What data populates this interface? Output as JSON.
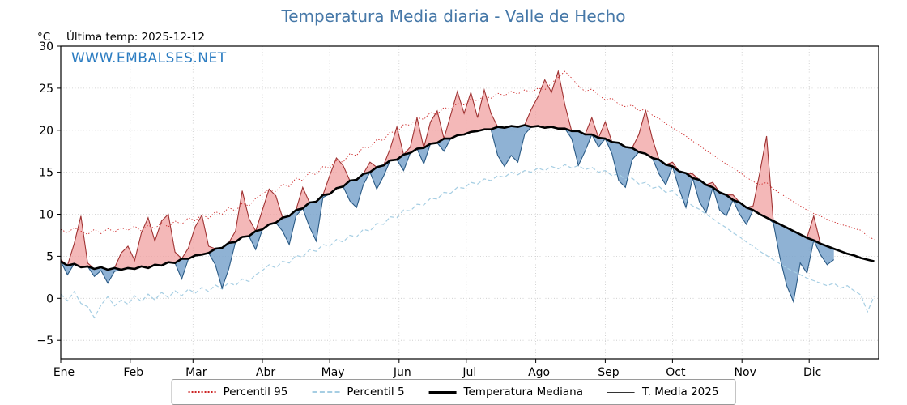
{
  "title": "Temperatura Media diaria - Valle de Hecho",
  "header": {
    "y_unit": "°C",
    "last_temp": "Última temp: 2025-12-12"
  },
  "watermark": "WWW.EMBALSES.NET",
  "legend": {
    "items": [
      {
        "label": "Percentil 95",
        "style": "dotted"
      },
      {
        "label": "Percentil 5",
        "style": "dashed"
      },
      {
        "label": "Temperatura Mediana",
        "style": "solid-thick"
      },
      {
        "label": "T. Media 2025",
        "style": "solid-thin"
      }
    ]
  },
  "colors": {
    "title": "#4678a8",
    "watermark": "#2b7cc1",
    "p95_line": "#cc2222",
    "p5_line": "#a6cee3",
    "median_line": "#000000",
    "t2025_line": "#333333",
    "above_fill": "#f0a0a0",
    "above_edge": "#a03333",
    "below_fill": "#7ba4cc",
    "below_edge": "#2a5a85",
    "grid": "#c8c8c8",
    "frame": "#000000"
  },
  "chart_data": {
    "type": "line",
    "title": "Temperatura Media diaria - Valle de Hecho",
    "xlabel": "",
    "ylabel": "°C",
    "ylim": [
      -7.2,
      30
    ],
    "grid": true,
    "legend_position": "bottom",
    "last_date": "2025-12-12",
    "y_ticks": [
      -5,
      0,
      5,
      10,
      15,
      20,
      25,
      30
    ],
    "x_months": [
      {
        "label": "Ene",
        "day": 0
      },
      {
        "label": "Feb",
        "day": 31
      },
      {
        "label": "Mar",
        "day": 59
      },
      {
        "label": "Abr",
        "day": 90
      },
      {
        "label": "May",
        "day": 120
      },
      {
        "label": "Jun",
        "day": 151
      },
      {
        "label": "Jul",
        "day": 181
      },
      {
        "label": "Ago",
        "day": 212
      },
      {
        "label": "Sep",
        "day": 243
      },
      {
        "label": "Oct",
        "day": 273
      },
      {
        "label": "Nov",
        "day": 304
      },
      {
        "label": "Dic",
        "day": 334
      }
    ],
    "step_days": 3,
    "series": [
      {
        "key": "p95",
        "name": "Percentil 95",
        "values": [
          8.2,
          7.8,
          8.4,
          8.0,
          7.6,
          8.2,
          7.7,
          8.3,
          7.9,
          8.4,
          8.1,
          8.6,
          8.0,
          8.7,
          8.3,
          9.0,
          8.5,
          9.2,
          8.8,
          9.6,
          9.2,
          10.0,
          9.5,
          10.3,
          10.0,
          10.8,
          10.4,
          11.3,
          11.0,
          11.9,
          12.4,
          13.0,
          12.7,
          13.6,
          13.3,
          14.3,
          14.0,
          15.0,
          14.7,
          15.7,
          15.5,
          16.4,
          16.2,
          17.2,
          17.0,
          18.0,
          17.9,
          18.9,
          18.8,
          19.8,
          19.7,
          20.7,
          20.6,
          21.5,
          21.3,
          22.1,
          21.9,
          22.7,
          22.5,
          23.2,
          23.0,
          23.7,
          23.5,
          24.1,
          23.8,
          24.4,
          24.1,
          24.6,
          24.3,
          24.8,
          24.5,
          25.0,
          24.8,
          25.6,
          26.3,
          27.0,
          26.2,
          25.3,
          24.6,
          24.9,
          24.2,
          23.6,
          23.8,
          23.1,
          22.8,
          23.0,
          22.3,
          22.5,
          21.8,
          21.4,
          20.8,
          20.3,
          19.8,
          19.3,
          18.7,
          18.2,
          17.6,
          17.1,
          16.5,
          16.0,
          15.5,
          15.0,
          14.4,
          13.9,
          13.5,
          13.8,
          13.0,
          12.5,
          12.0,
          11.5,
          11.0,
          10.5,
          10.1,
          9.8,
          9.4,
          9.1,
          8.8,
          8.6,
          8.3,
          8.1,
          7.4,
          7.0
        ]
      },
      {
        "key": "p5",
        "name": "Percentil 5",
        "values": [
          0.5,
          -0.3,
          0.8,
          -0.6,
          -1.0,
          -2.3,
          -0.8,
          0.2,
          -0.9,
          -0.2,
          -0.7,
          0.3,
          -0.4,
          0.5,
          -0.2,
          0.7,
          0.1,
          0.9,
          0.3,
          1.1,
          0.6,
          1.3,
          0.8,
          1.6,
          1.1,
          1.9,
          1.5,
          2.3,
          2.0,
          2.8,
          3.3,
          4.0,
          3.6,
          4.4,
          4.2,
          5.1,
          4.9,
          5.8,
          5.6,
          6.4,
          6.2,
          7.0,
          6.7,
          7.5,
          7.3,
          8.2,
          8.0,
          8.9,
          8.8,
          9.7,
          9.6,
          10.5,
          10.4,
          11.2,
          11.1,
          11.9,
          11.8,
          12.6,
          12.5,
          13.2,
          13.1,
          13.8,
          13.6,
          14.2,
          14.0,
          14.6,
          14.4,
          15.0,
          14.7,
          15.2,
          15.0,
          15.5,
          15.2,
          15.7,
          15.4,
          15.9,
          15.5,
          15.8,
          15.3,
          15.6,
          15.0,
          15.2,
          14.6,
          14.8,
          14.1,
          14.3,
          13.6,
          13.8,
          13.1,
          13.3,
          12.6,
          12.8,
          12.0,
          11.6,
          11.0,
          10.6,
          10.0,
          9.5,
          8.9,
          8.4,
          7.8,
          7.3,
          6.7,
          6.2,
          5.6,
          5.1,
          4.6,
          4.1,
          3.6,
          3.2,
          2.8,
          2.4,
          2.1,
          1.8,
          1.5,
          1.8,
          1.2,
          1.5,
          0.9,
          0.4,
          -1.6,
          0.3
        ]
      },
      {
        "key": "median",
        "name": "Temperatura Mediana",
        "values": [
          4.4,
          3.9,
          4.1,
          3.7,
          3.8,
          3.5,
          3.7,
          3.4,
          3.6,
          3.4,
          3.6,
          3.5,
          3.8,
          3.6,
          4.0,
          3.9,
          4.3,
          4.2,
          4.7,
          4.7,
          5.1,
          5.2,
          5.4,
          5.9,
          6.0,
          6.6,
          6.7,
          7.3,
          7.4,
          8.0,
          8.2,
          8.8,
          9.0,
          9.6,
          9.8,
          10.5,
          10.7,
          11.4,
          11.5,
          12.3,
          12.4,
          13.1,
          13.3,
          14.0,
          14.1,
          14.8,
          15.0,
          15.6,
          15.8,
          16.4,
          16.5,
          17.1,
          17.3,
          17.8,
          17.9,
          18.4,
          18.5,
          19.0,
          19.0,
          19.4,
          19.5,
          19.8,
          19.9,
          20.1,
          20.1,
          20.4,
          20.3,
          20.5,
          20.4,
          20.6,
          20.4,
          20.5,
          20.3,
          20.4,
          20.2,
          20.2,
          19.9,
          19.9,
          19.5,
          19.5,
          19.1,
          19.0,
          18.6,
          18.5,
          18.0,
          17.9,
          17.4,
          17.2,
          16.7,
          16.5,
          15.9,
          15.7,
          15.1,
          14.9,
          14.3,
          14.1,
          13.5,
          13.2,
          12.6,
          12.3,
          11.7,
          11.4,
          10.8,
          10.5,
          10.0,
          9.6,
          9.2,
          8.8,
          8.4,
          8.0,
          7.6,
          7.2,
          6.9,
          6.5,
          6.2,
          5.9,
          5.6,
          5.3,
          5.1,
          4.8,
          4.6,
          4.4
        ]
      },
      {
        "key": "t2025",
        "name": "T. Media 2025",
        "values": [
          4.6,
          2.8,
          6.5,
          9.8,
          4.2,
          2.6,
          3.3,
          1.8,
          3.2,
          5.4,
          6.2,
          4.5,
          7.8,
          9.6,
          6.8,
          9.2,
          10.0,
          5.5,
          2.3,
          6.0,
          8.5,
          9.9,
          6.2,
          4.0,
          1.2,
          3.5,
          8.0,
          12.8,
          9.5,
          5.8,
          10.5,
          13.0,
          12.2,
          8.0,
          6.4,
          9.8,
          13.2,
          8.5,
          6.8,
          12.0,
          14.6,
          16.7,
          15.8,
          11.6,
          10.8,
          13.5,
          16.2,
          13.0,
          14.5,
          17.8,
          20.4,
          15.2,
          18.0,
          21.5,
          16.0,
          21.0,
          22.3,
          17.5,
          21.8,
          24.6,
          22.0,
          24.5,
          21.5,
          24.8,
          22.0,
          17.0,
          15.7,
          17.0,
          16.2,
          19.5,
          22.5,
          24.0,
          26.0,
          24.5,
          27.0,
          23.0,
          19.0,
          15.8,
          17.5,
          21.5,
          18.0,
          21.0,
          17.2,
          14.0,
          13.2,
          16.5,
          19.5,
          22.4,
          19.0,
          14.8,
          13.5,
          16.2,
          13.0,
          10.8,
          14.8,
          11.5,
          10.2,
          13.8,
          10.5,
          9.8,
          12.3,
          10.0,
          8.8,
          11.0,
          15.0,
          19.3,
          9.0,
          4.8,
          1.5,
          -0.4,
          4.2,
          3.0,
          9.8,
          5.2,
          4.0,
          4.6
        ]
      }
    ]
  }
}
